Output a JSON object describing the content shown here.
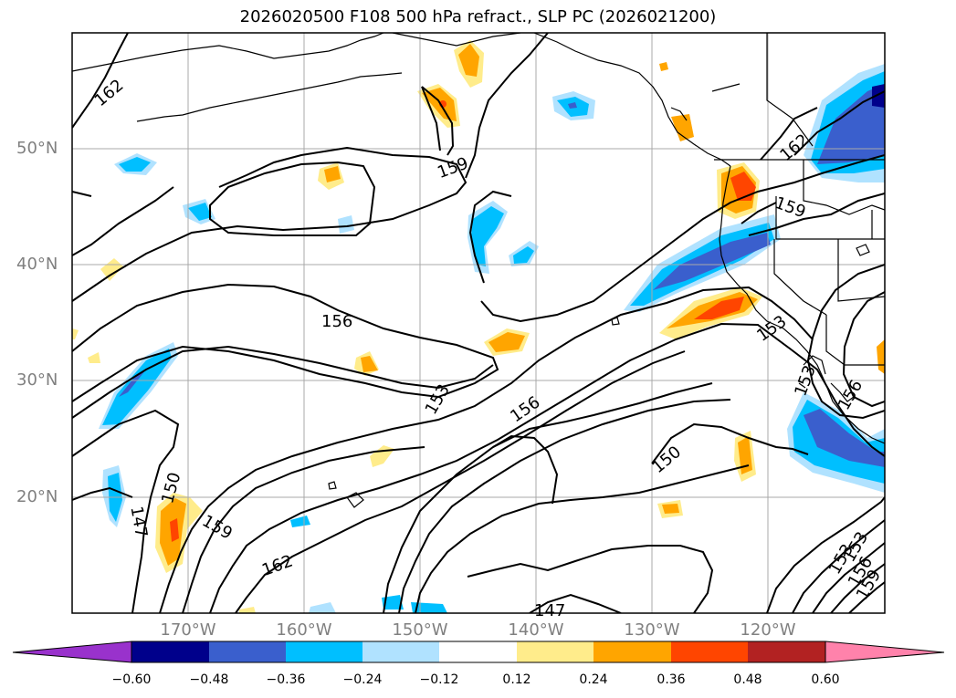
{
  "title": "2026020500 F108 500 hPa refract., SLP PC (2026021200)",
  "lat_labels": [
    "50°N",
    "40°N",
    "30°N",
    "20°N"
  ],
  "lon_labels": [
    "170°W",
    "160°W",
    "150°W",
    "140°W",
    "130°W",
    "120°W"
  ],
  "contour_labels": [
    "162",
    "159",
    "156",
    "153",
    "150",
    "147",
    "162",
    "159",
    "156",
    "153",
    "162",
    "153",
    "156",
    "153",
    "159",
    "150",
    "147",
    "153",
    "156",
    "159"
  ],
  "colorbar": {
    "labels": [
      "−0.60",
      "−0.48",
      "−0.36",
      "−0.24",
      "−0.12",
      "0.12",
      "0.24",
      "0.36",
      "0.48",
      "0.60"
    ],
    "colors": [
      "#9932cc",
      "#00008b",
      "#3a5fcd",
      "#00bfff",
      "#b0e2ff",
      "#ffffff",
      "#ffec8b",
      "#ffa500",
      "#ff4500",
      "#b22222",
      "#ff82ab"
    ]
  }
}
